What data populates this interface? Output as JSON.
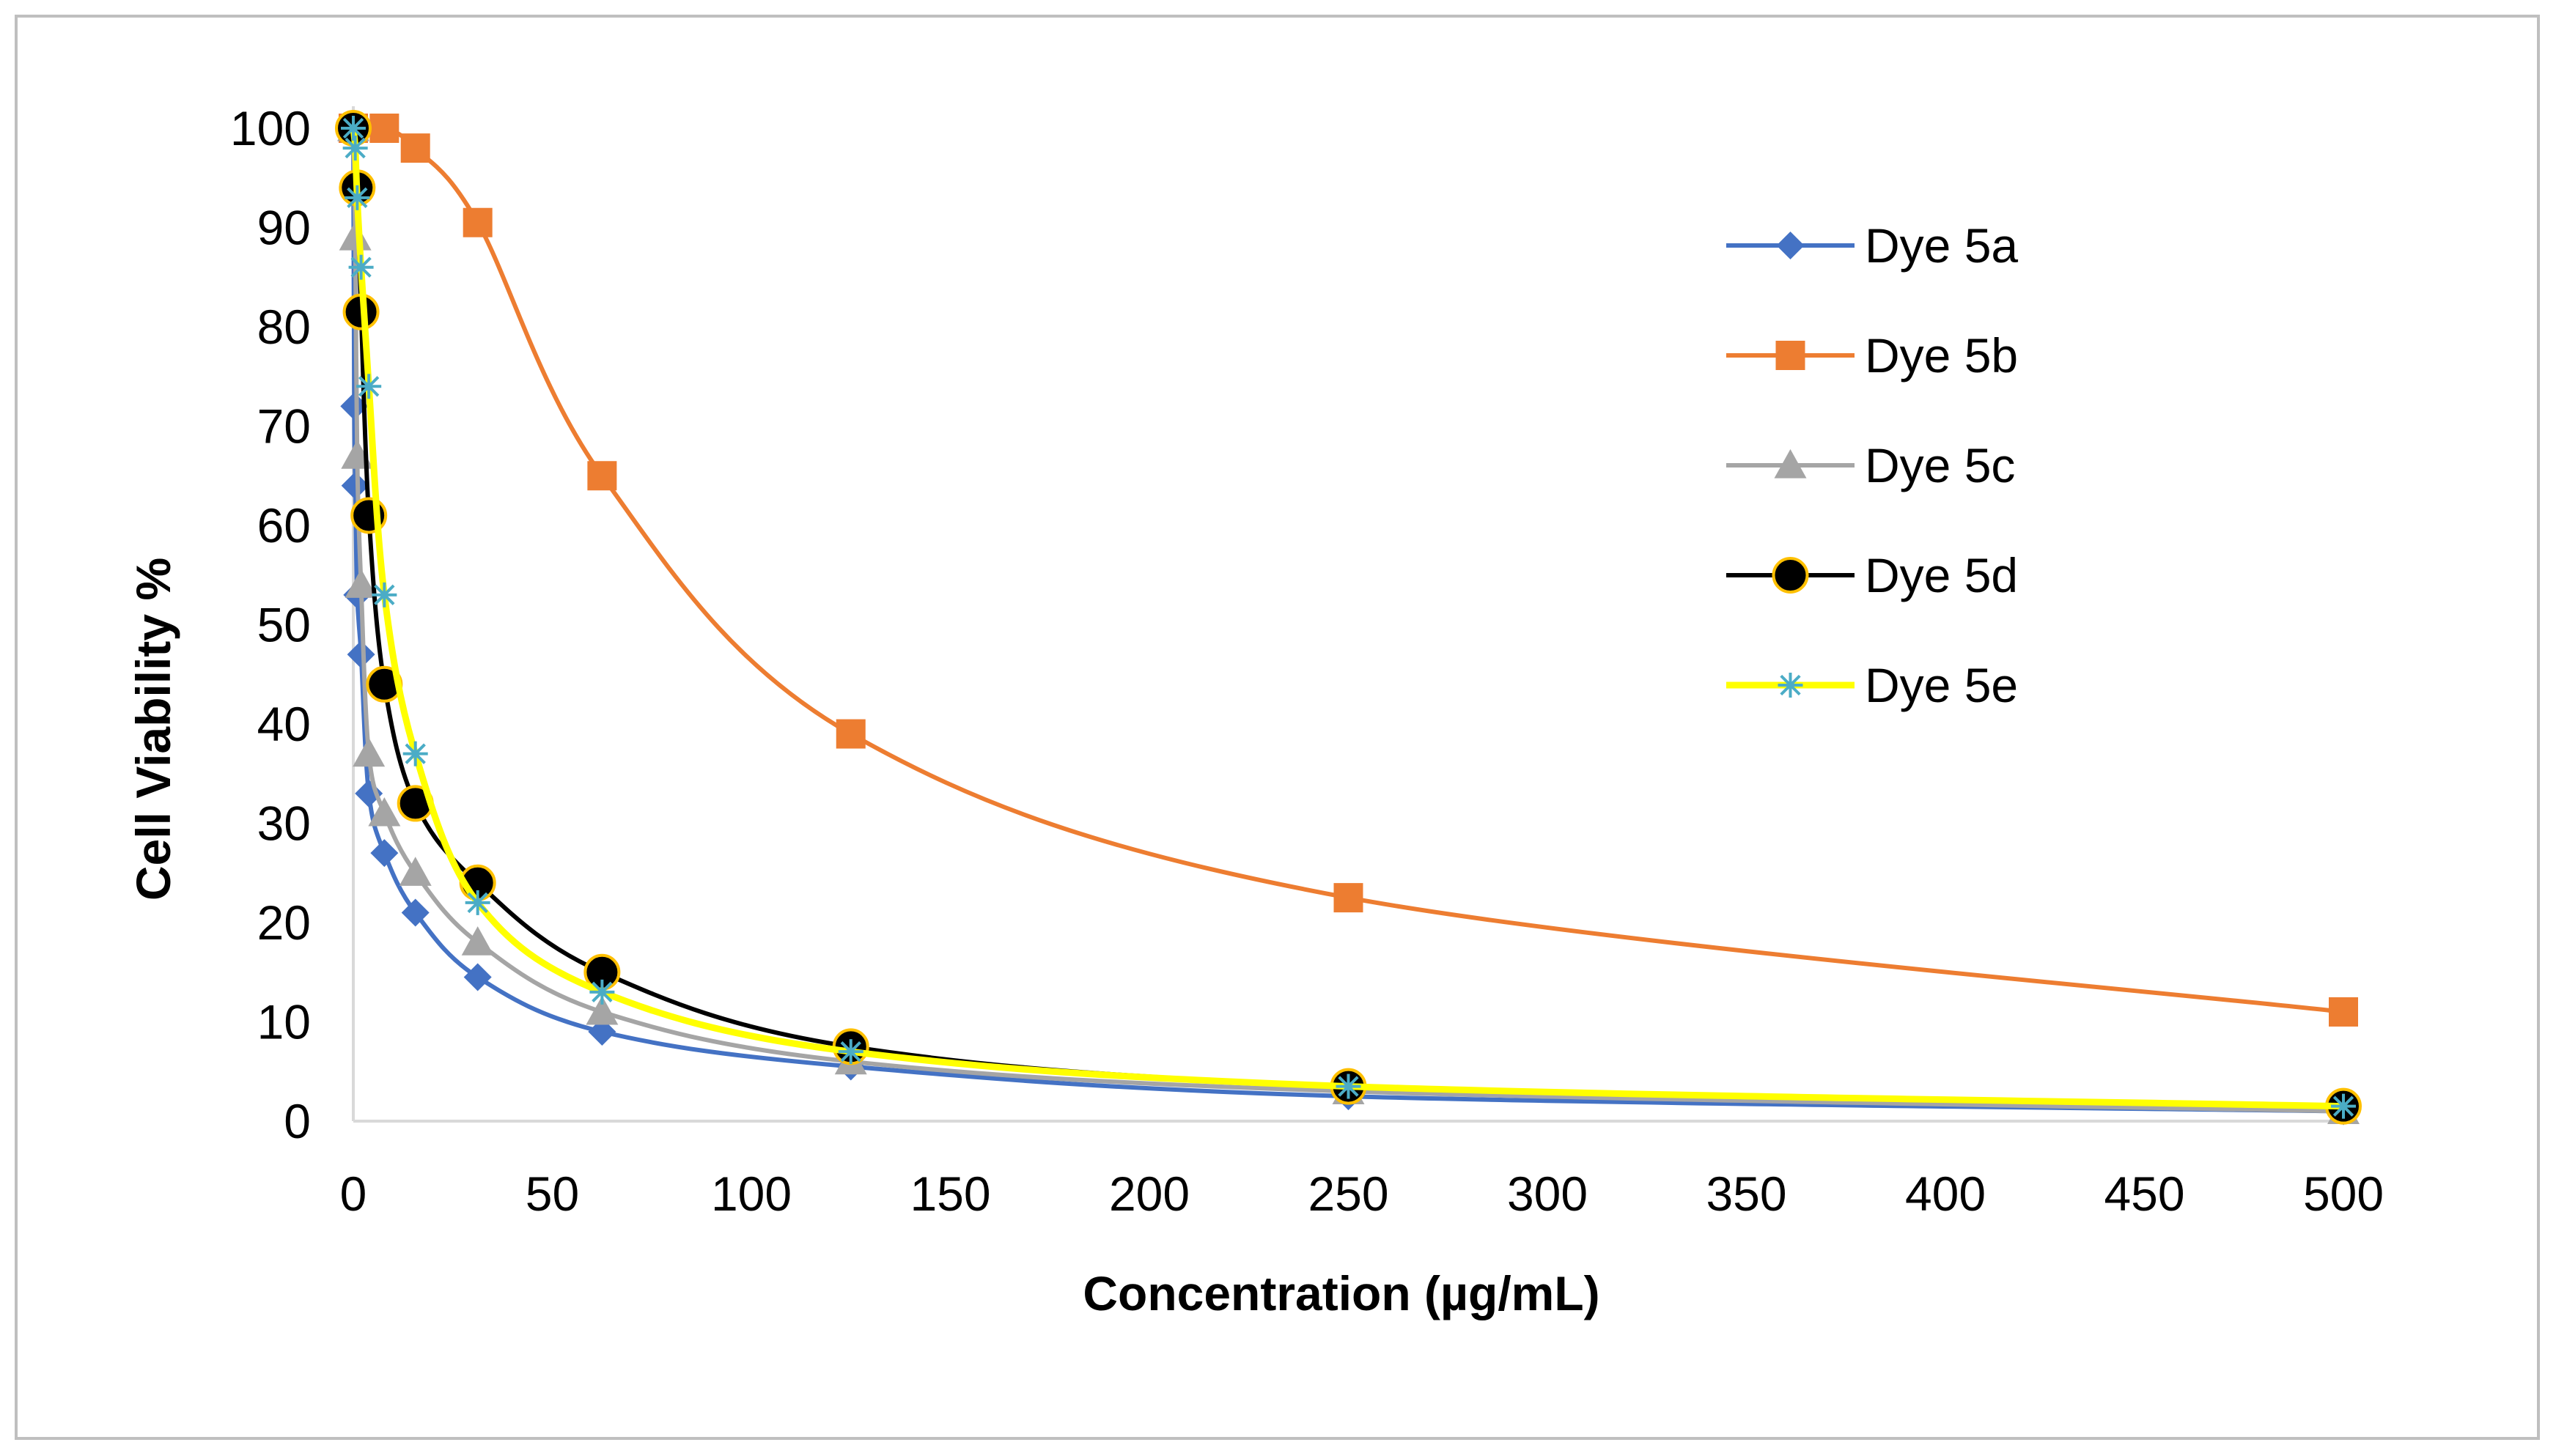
{
  "chart_data": {
    "type": "line",
    "xlabel": "Concentration (µg/mL)",
    "ylabel": "Cell  Viability %",
    "xlim": [
      0,
      500
    ],
    "ylim": [
      0,
      100
    ],
    "x_ticks": [
      0,
      50,
      100,
      150,
      200,
      250,
      300,
      350,
      400,
      450,
      500
    ],
    "y_ticks": [
      0,
      10,
      20,
      30,
      40,
      50,
      60,
      70,
      80,
      90,
      100
    ],
    "grid": false,
    "legend_position": "top-right",
    "smooth": true,
    "series": [
      {
        "name": "Dye 5a",
        "color": "#4472C4",
        "marker": "diamond",
        "points": [
          [
            0,
            100
          ],
          [
            0.24,
            72
          ],
          [
            0.49,
            64
          ],
          [
            0.98,
            53
          ],
          [
            1.95,
            47
          ],
          [
            3.9,
            33
          ],
          [
            7.8,
            27
          ],
          [
            15.6,
            21
          ],
          [
            31.25,
            14.5
          ],
          [
            62.5,
            9
          ],
          [
            125,
            5.5
          ],
          [
            250,
            2.5
          ],
          [
            500,
            1
          ]
        ]
      },
      {
        "name": "Dye 5b",
        "color": "#ED7D31",
        "marker": "square",
        "points": [
          [
            0,
            100
          ],
          [
            7.8,
            100
          ],
          [
            15.6,
            98
          ],
          [
            31.25,
            90.5
          ],
          [
            62.5,
            65
          ],
          [
            125,
            39
          ],
          [
            250,
            22.5
          ],
          [
            500,
            11
          ]
        ]
      },
      {
        "name": "Dye 5c",
        "color": "#A5A5A5",
        "marker": "triangle",
        "points": [
          [
            0,
            100
          ],
          [
            0.49,
            89
          ],
          [
            0.98,
            67
          ],
          [
            1.95,
            54
          ],
          [
            3.9,
            37
          ],
          [
            7.8,
            31
          ],
          [
            15.6,
            25
          ],
          [
            31.25,
            18
          ],
          [
            62.5,
            11
          ],
          [
            125,
            6
          ],
          [
            250,
            3
          ],
          [
            500,
            1
          ]
        ]
      },
      {
        "name": "Dye 5d",
        "color": "#000000",
        "marker": "circle",
        "points": [
          [
            0,
            100
          ],
          [
            0.98,
            94
          ],
          [
            1.95,
            81.5
          ],
          [
            3.9,
            61
          ],
          [
            7.8,
            44
          ],
          [
            15.6,
            32
          ],
          [
            31.25,
            24
          ],
          [
            62.5,
            15
          ],
          [
            125,
            7.5
          ],
          [
            250,
            3.5
          ],
          [
            500,
            1.5
          ]
        ]
      },
      {
        "name": "Dye 5e",
        "color": "#FFFF00",
        "marker": "star",
        "points": [
          [
            0,
            100
          ],
          [
            0.49,
            98
          ],
          [
            0.98,
            93
          ],
          [
            1.95,
            86
          ],
          [
            3.9,
            74
          ],
          [
            7.8,
            53
          ],
          [
            15.6,
            37
          ],
          [
            31.25,
            22
          ],
          [
            62.5,
            13
          ],
          [
            125,
            7
          ],
          [
            250,
            3.5
          ],
          [
            500,
            1.5
          ]
        ]
      }
    ]
  }
}
